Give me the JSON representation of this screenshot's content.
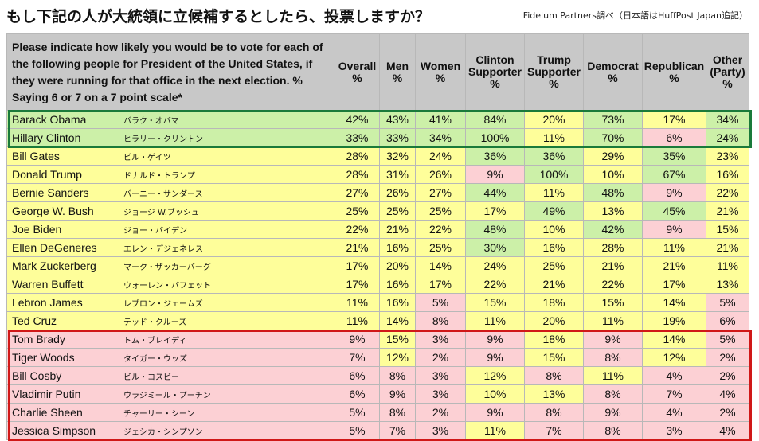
{
  "title": "もし下記の人が大統領に立候補するとしたら、投票しますか？",
  "source": "Fidelum Partners調べ（日本語はHuffPost Japan追記）",
  "chart_data": {
    "type": "table",
    "question": "Please indicate how likely you would be to vote for each of the following people for President of the United States, if they were running for that office in the next election. % Saying 6 or 7 on a 7 point scale*",
    "columns": [
      "Overall %",
      "Men %",
      "Women %",
      "Clinton Supporter %",
      "Trump Supporter %",
      "Democrat %",
      "Republican %",
      "Other (Party) %"
    ],
    "highlight_groups": [
      {
        "color": "#1a7a3a",
        "rows": [
          0,
          1
        ]
      },
      {
        "color": "#d01818",
        "rows": [
          12,
          13,
          14,
          15,
          16,
          17
        ]
      }
    ],
    "rows": [
      {
        "name": "Barack Obama",
        "name_ja": "バラク・オバマ",
        "values": [
          "42%",
          "43%",
          "41%",
          "84%",
          "20%",
          "73%",
          "17%",
          "34%"
        ],
        "colors": [
          "#ccf0a8",
          "#ccf0a8",
          "#ccf0a8",
          "#ccf0a8",
          "#fefe9a",
          "#ccf0a8",
          "#fefe9a",
          "#ccf0a8"
        ]
      },
      {
        "name": "Hillary Clinton",
        "name_ja": "ヒラリー・クリントン",
        "values": [
          "33%",
          "33%",
          "34%",
          "100%",
          "11%",
          "70%",
          "6%",
          "24%"
        ],
        "colors": [
          "#ccf0a8",
          "#ccf0a8",
          "#ccf0a8",
          "#ccf0a8",
          "#fefe9a",
          "#ccf0a8",
          "#fcd0d4",
          "#ccf0a8"
        ]
      },
      {
        "name": "Bill Gates",
        "name_ja": "ビル・ゲイツ",
        "values": [
          "28%",
          "32%",
          "24%",
          "36%",
          "36%",
          "29%",
          "35%",
          "23%"
        ],
        "colors": [
          "#fefe9a",
          "#fefe9a",
          "#fefe9a",
          "#ccf0a8",
          "#ccf0a8",
          "#fefe9a",
          "#ccf0a8",
          "#fefe9a"
        ]
      },
      {
        "name": "Donald Trump",
        "name_ja": "ドナルド・トランプ",
        "values": [
          "28%",
          "31%",
          "26%",
          "9%",
          "100%",
          "10%",
          "67%",
          "16%"
        ],
        "colors": [
          "#fefe9a",
          "#fefe9a",
          "#fefe9a",
          "#fcd0d4",
          "#ccf0a8",
          "#fefe9a",
          "#ccf0a8",
          "#fefe9a"
        ]
      },
      {
        "name": "Bernie Sanders",
        "name_ja": "バーニー・サンダース",
        "values": [
          "27%",
          "26%",
          "27%",
          "44%",
          "11%",
          "48%",
          "9%",
          "22%"
        ],
        "colors": [
          "#fefe9a",
          "#fefe9a",
          "#fefe9a",
          "#ccf0a8",
          "#fefe9a",
          "#ccf0a8",
          "#fcd0d4",
          "#fefe9a"
        ]
      },
      {
        "name": "George W. Bush",
        "name_ja": "ジョージ W.ブッシュ",
        "values": [
          "25%",
          "25%",
          "25%",
          "17%",
          "49%",
          "13%",
          "45%",
          "21%"
        ],
        "colors": [
          "#fefe9a",
          "#fefe9a",
          "#fefe9a",
          "#fefe9a",
          "#ccf0a8",
          "#fefe9a",
          "#ccf0a8",
          "#fefe9a"
        ]
      },
      {
        "name": "Joe Biden",
        "name_ja": "ジョー・バイデン",
        "values": [
          "22%",
          "21%",
          "22%",
          "48%",
          "10%",
          "42%",
          "9%",
          "15%"
        ],
        "colors": [
          "#fefe9a",
          "#fefe9a",
          "#fefe9a",
          "#ccf0a8",
          "#fefe9a",
          "#ccf0a8",
          "#fcd0d4",
          "#fefe9a"
        ]
      },
      {
        "name": "Ellen DeGeneres",
        "name_ja": "エレン・デジェネレス",
        "values": [
          "21%",
          "16%",
          "25%",
          "30%",
          "16%",
          "28%",
          "11%",
          "21%"
        ],
        "colors": [
          "#fefe9a",
          "#fefe9a",
          "#fefe9a",
          "#ccf0a8",
          "#fefe9a",
          "#fefe9a",
          "#fefe9a",
          "#fefe9a"
        ]
      },
      {
        "name": "Mark Zuckerberg",
        "name_ja": "マーク・ザッカーバーグ",
        "values": [
          "17%",
          "20%",
          "14%",
          "24%",
          "25%",
          "21%",
          "21%",
          "11%"
        ],
        "colors": [
          "#fefe9a",
          "#fefe9a",
          "#fefe9a",
          "#fefe9a",
          "#fefe9a",
          "#fefe9a",
          "#fefe9a",
          "#fefe9a"
        ]
      },
      {
        "name": "Warren Buffett",
        "name_ja": "ウォーレン・バフェット",
        "values": [
          "17%",
          "16%",
          "17%",
          "22%",
          "21%",
          "22%",
          "17%",
          "13%"
        ],
        "colors": [
          "#fefe9a",
          "#fefe9a",
          "#fefe9a",
          "#fefe9a",
          "#fefe9a",
          "#fefe9a",
          "#fefe9a",
          "#fefe9a"
        ]
      },
      {
        "name": "Lebron James",
        "name_ja": "レブロン・ジェームズ",
        "values": [
          "11%",
          "16%",
          "5%",
          "15%",
          "18%",
          "15%",
          "14%",
          "5%"
        ],
        "colors": [
          "#fefe9a",
          "#fefe9a",
          "#fcd0d4",
          "#fefe9a",
          "#fefe9a",
          "#fefe9a",
          "#fefe9a",
          "#fcd0d4"
        ]
      },
      {
        "name": "Ted Cruz",
        "name_ja": "テッド・クルーズ",
        "values": [
          "11%",
          "14%",
          "8%",
          "11%",
          "20%",
          "11%",
          "19%",
          "6%"
        ],
        "colors": [
          "#fefe9a",
          "#fefe9a",
          "#fcd0d4",
          "#fefe9a",
          "#fefe9a",
          "#fefe9a",
          "#fefe9a",
          "#fcd0d4"
        ]
      },
      {
        "name": "Tom Brady",
        "name_ja": "トム・ブレイディ",
        "values": [
          "9%",
          "15%",
          "3%",
          "9%",
          "18%",
          "9%",
          "14%",
          "5%"
        ],
        "colors": [
          "#fcd0d4",
          "#fefe9a",
          "#fcd0d4",
          "#fcd0d4",
          "#fefe9a",
          "#fcd0d4",
          "#fefe9a",
          "#fcd0d4"
        ]
      },
      {
        "name": "Tiger Woods",
        "name_ja": "タイガー・ウッズ",
        "values": [
          "7%",
          "12%",
          "2%",
          "9%",
          "15%",
          "8%",
          "12%",
          "2%"
        ],
        "colors": [
          "#fcd0d4",
          "#fefe9a",
          "#fcd0d4",
          "#fcd0d4",
          "#fefe9a",
          "#fcd0d4",
          "#fefe9a",
          "#fcd0d4"
        ]
      },
      {
        "name": "Bill Cosby",
        "name_ja": "ビル・コスビー",
        "values": [
          "6%",
          "8%",
          "3%",
          "12%",
          "8%",
          "11%",
          "4%",
          "2%"
        ],
        "colors": [
          "#fcd0d4",
          "#fcd0d4",
          "#fcd0d4",
          "#fefe9a",
          "#fcd0d4",
          "#fefe9a",
          "#fcd0d4",
          "#fcd0d4"
        ]
      },
      {
        "name": "Vladimir Putin",
        "name_ja": "ウラジミール・プーチン",
        "values": [
          "6%",
          "9%",
          "3%",
          "10%",
          "13%",
          "8%",
          "7%",
          "4%"
        ],
        "colors": [
          "#fcd0d4",
          "#fcd0d4",
          "#fcd0d4",
          "#fefe9a",
          "#fefe9a",
          "#fcd0d4",
          "#fcd0d4",
          "#fcd0d4"
        ]
      },
      {
        "name": "Charlie Sheen",
        "name_ja": "チャーリー・シーン",
        "values": [
          "5%",
          "8%",
          "2%",
          "9%",
          "8%",
          "9%",
          "4%",
          "2%"
        ],
        "colors": [
          "#fcd0d4",
          "#fcd0d4",
          "#fcd0d4",
          "#fcd0d4",
          "#fcd0d4",
          "#fcd0d4",
          "#fcd0d4",
          "#fcd0d4"
        ]
      },
      {
        "name": "Jessica Simpson",
        "name_ja": "ジェシカ・シンプソン",
        "values": [
          "5%",
          "7%",
          "3%",
          "11%",
          "7%",
          "8%",
          "3%",
          "4%"
        ],
        "colors": [
          "#fcd0d4",
          "#fcd0d4",
          "#fcd0d4",
          "#fefe9a",
          "#fcd0d4",
          "#fcd0d4",
          "#fcd0d4",
          "#fcd0d4"
        ]
      }
    ]
  }
}
